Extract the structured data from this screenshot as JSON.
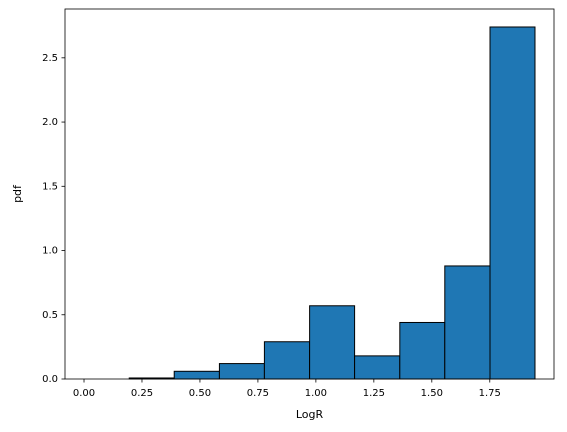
{
  "chart_data": {
    "type": "histogram",
    "x_label": "LogR",
    "y_label": "pdf",
    "bins": [
      0.0,
      0.195,
      0.389,
      0.584,
      0.778,
      0.973,
      1.167,
      1.362,
      1.556,
      1.751,
      1.945
    ],
    "values": [
      0,
      0.008,
      0.06,
      0.12,
      0.29,
      0.57,
      0.18,
      0.44,
      0.88,
      2.74
    ],
    "color": "#1f77b4",
    "edgecolor": "#000000",
    "xlim": [
      -0.082,
      2.027
    ],
    "ylim": [
      0,
      2.88
    ],
    "xticks": [
      {
        "value": 0,
        "label": "0.00"
      },
      {
        "value": 0.25,
        "label": "0.25"
      },
      {
        "value": 0.5,
        "label": "0.50"
      },
      {
        "value": 0.75,
        "label": "0.75"
      },
      {
        "value": 1,
        "label": "1.00"
      },
      {
        "value": 1.25,
        "label": "1.25"
      },
      {
        "value": 1.5,
        "label": "1.50"
      },
      {
        "value": 1.75,
        "label": "1.75"
      }
    ],
    "yticks": [
      {
        "value": 0,
        "label": "0.0"
      },
      0.5,
      {
        "value": 1,
        "label": "1.0"
      },
      1.5,
      {
        "value": 2,
        "label": "2.0"
      },
      2.5
    ]
  }
}
